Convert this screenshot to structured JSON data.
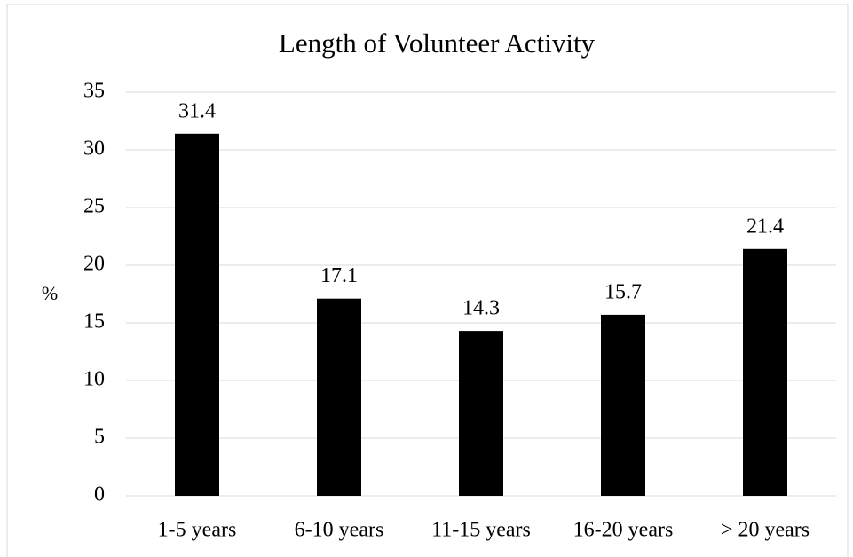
{
  "chart_data": {
    "type": "bar",
    "title": "Length of Volunteer Activity",
    "y_label": "%",
    "categories": [
      "1-5 years",
      "6-10 years",
      "11-15 years",
      "16-20 years",
      "> 20 years"
    ],
    "values": [
      31.4,
      17.1,
      14.3,
      15.7,
      21.4
    ],
    "color": "#000000",
    "ylim": [
      0,
      35
    ],
    "yticks": [
      0,
      5,
      10,
      15,
      20,
      25,
      30,
      35
    ],
    "grid": true,
    "data_labels": true
  }
}
